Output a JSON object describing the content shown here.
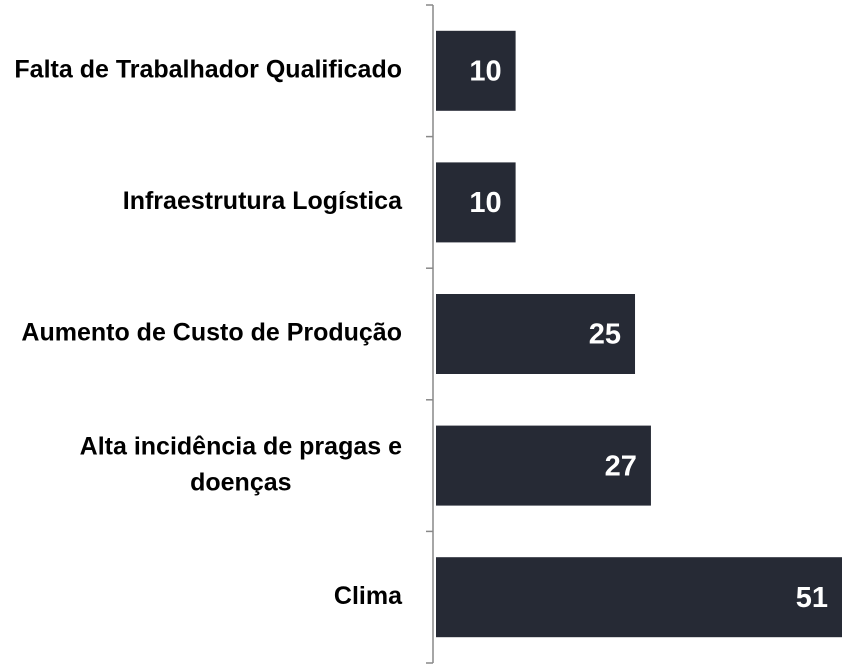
{
  "chart_data": {
    "type": "barh",
    "categories": [
      "Falta de Trabalhador Qualificado",
      "Infraestrutura Logística",
      "Aumento de Custo de Produção",
      "Alta incidência de pragas e doenças",
      "Clima"
    ],
    "values": [
      10,
      10,
      25,
      27,
      51
    ],
    "color": "#262a35",
    "xlim": [
      0,
      51
    ]
  }
}
